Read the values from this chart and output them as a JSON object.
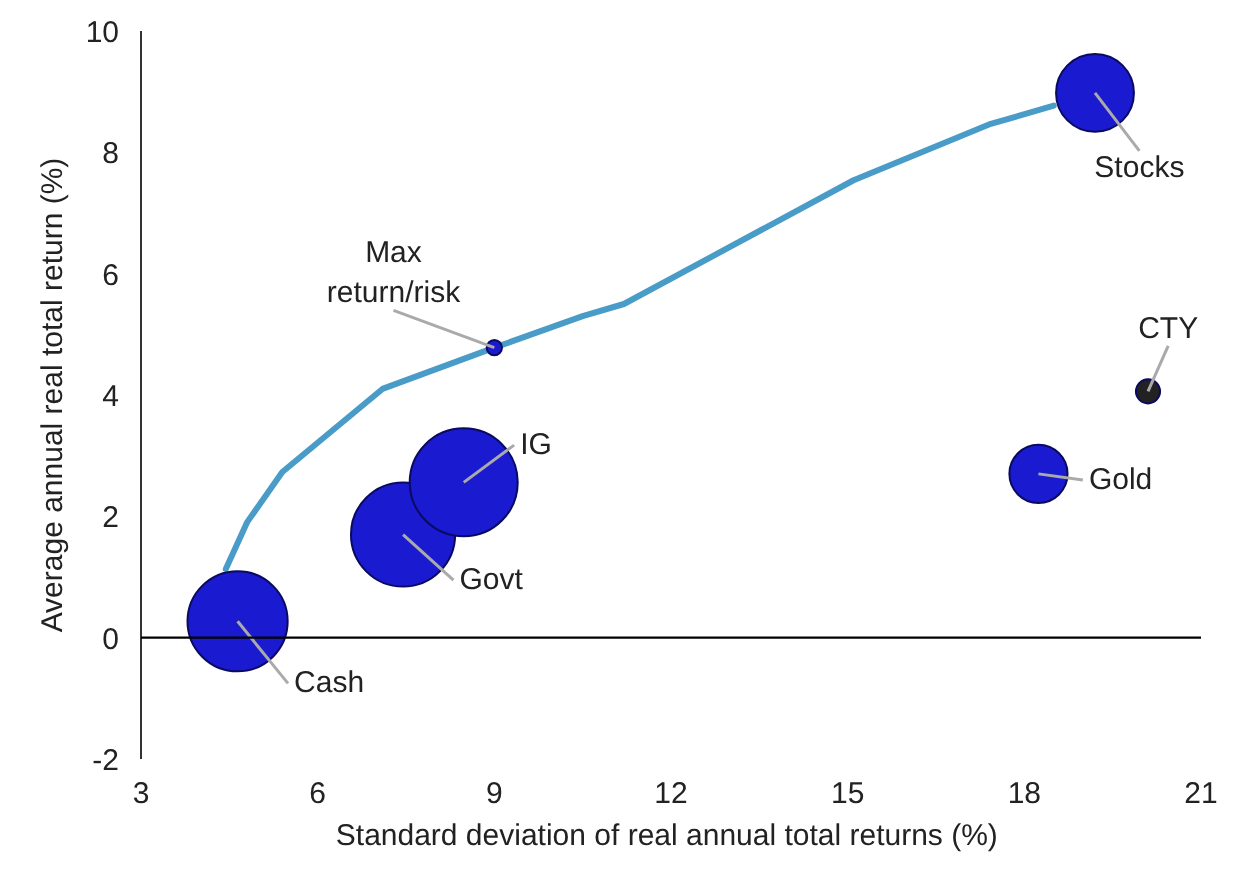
{
  "chart_data": {
    "type": "bubble",
    "xlabel": "Standard deviation  of real annual total returns (%)",
    "ylabel": "Average annual real total return (%)",
    "xlim": [
      3,
      21
    ],
    "xticks": [
      3,
      6,
      9,
      12,
      15,
      18,
      21
    ],
    "ylim": [
      -2,
      10
    ],
    "yticks": [
      -2,
      0,
      2,
      4,
      6,
      8,
      10
    ],
    "grid": false,
    "ref_lines": [
      {
        "axis": "y",
        "value": 0,
        "color": "#000000"
      }
    ],
    "series": [
      {
        "type": "line",
        "color": "#4a9cc8",
        "x": [
          4.44,
          4.8,
          5.4,
          7.1,
          9.0,
          10.5,
          11.2,
          15.1,
          17.4,
          18.5
        ],
        "values": [
          1.13,
          1.9,
          2.73,
          4.1,
          4.78,
          5.3,
          5.5,
          7.54,
          8.46,
          8.77
        ]
      },
      {
        "x": [
          4.64,
          7.45,
          8.48,
          9.0,
          19.2,
          18.24,
          20.1
        ],
        "values": [
          0.27,
          1.7,
          2.56,
          4.78,
          8.98,
          2.7,
          4.06
        ],
        "sizes": [
          0.86,
          0.93,
          1,
          0.02,
          0.52,
          0.29,
          0.05
        ],
        "colors": [
          "#1a1ad0",
          "#1a1ad0",
          "#1a1ad0",
          "#1a1ad0",
          "#1a1ad0",
          "#1a1ad0",
          "#222222"
        ]
      }
    ],
    "annotations": [
      {
        "text": "Cash",
        "x": 4.64,
        "y": 0.27
      },
      {
        "text": "Govt",
        "x": 7.45,
        "y": 1.7
      },
      {
        "text": "IG",
        "x": 8.48,
        "y": 2.56
      },
      {
        "text": "Max\nreturn/risk",
        "x": 9.0,
        "y": 4.78
      },
      {
        "text": "Stocks",
        "x": 19.2,
        "y": 8.98
      },
      {
        "text": "Gold",
        "x": 18.24,
        "y": 2.7
      },
      {
        "text": "CTY",
        "x": 20.1,
        "y": 4.06
      }
    ]
  }
}
